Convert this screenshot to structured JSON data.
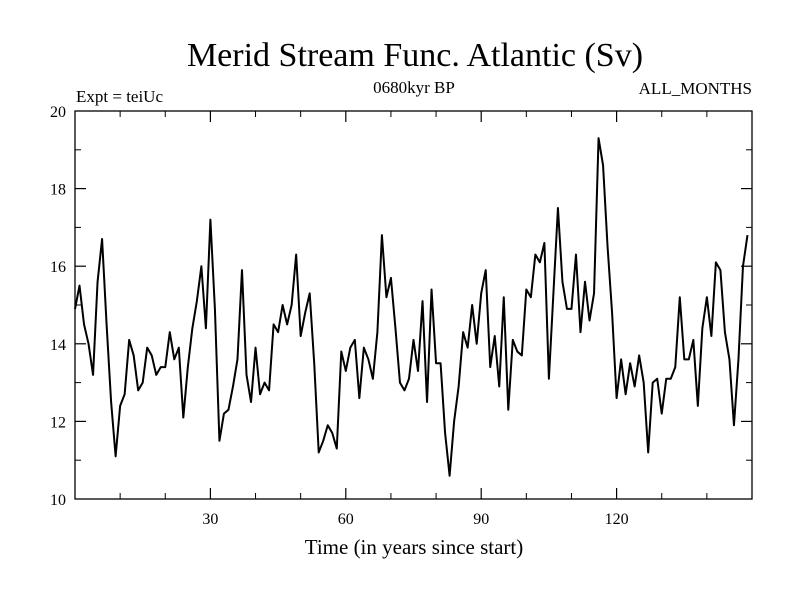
{
  "chart_data": {
    "type": "line",
    "title": "Merid Stream Func. Atlantic (Sv)",
    "subtitle_left": "Expt = teiUc",
    "subtitle_center": "0680kyr BP",
    "subtitle_right": "ALL_MONTHS",
    "xlabel": "Time (in years since start)",
    "ylabel": "",
    "xlim": [
      0,
      150
    ],
    "ylim": [
      10,
      20
    ],
    "x_ticks": [
      30,
      60,
      90,
      120
    ],
    "y_ticks": [
      10,
      12,
      14,
      16,
      18,
      20
    ],
    "x_minor_step": 10,
    "y_minor_step": 1,
    "grid": false,
    "legend": "none",
    "color": "#000000",
    "series": [
      {
        "name": "Merid Stream Func. Atlantic",
        "x_start": 0,
        "x_step": 1,
        "values": [
          14.9,
          15.5,
          14.5,
          14.0,
          13.2,
          15.6,
          16.7,
          14.5,
          12.5,
          11.1,
          12.4,
          12.7,
          14.1,
          13.7,
          12.8,
          13.0,
          13.9,
          13.7,
          13.2,
          13.4,
          13.4,
          14.3,
          13.6,
          13.9,
          12.1,
          13.4,
          14.4,
          15.1,
          16.0,
          14.4,
          17.2,
          14.9,
          11.5,
          12.2,
          12.3,
          12.9,
          13.6,
          15.9,
          13.2,
          12.5,
          13.9,
          12.7,
          13.0,
          12.8,
          14.5,
          14.3,
          15.0,
          14.5,
          15.0,
          16.3,
          14.2,
          14.8,
          15.3,
          13.5,
          11.2,
          11.5,
          11.9,
          11.7,
          11.3,
          13.8,
          13.3,
          13.9,
          14.1,
          12.6,
          13.9,
          13.6,
          13.1,
          14.3,
          16.8,
          15.2,
          15.7,
          14.4,
          13.0,
          12.8,
          13.1,
          14.1,
          13.3,
          15.1,
          12.5,
          15.4,
          13.5,
          13.5,
          11.7,
          10.6,
          12.0,
          12.9,
          14.3,
          13.9,
          15.0,
          14.0,
          15.3,
          15.9,
          13.4,
          14.2,
          12.9,
          15.2,
          12.3,
          14.1,
          13.8,
          13.7,
          15.4,
          15.2,
          16.3,
          16.1,
          16.6,
          13.1,
          15.3,
          17.5,
          15.6,
          14.9,
          14.9,
          16.3,
          14.3,
          15.6,
          14.6,
          15.3,
          19.3,
          18.6,
          16.5,
          14.8,
          12.6,
          13.6,
          12.7,
          13.5,
          12.9,
          13.7,
          13.0,
          11.2,
          13.0,
          13.1,
          12.2,
          13.1,
          13.1,
          13.4,
          15.2,
          13.6,
          13.6,
          14.1,
          12.4,
          14.4,
          15.2,
          14.2,
          16.1,
          15.9,
          14.3,
          13.6,
          11.9,
          13.6,
          16.0,
          16.8
        ]
      }
    ]
  }
}
